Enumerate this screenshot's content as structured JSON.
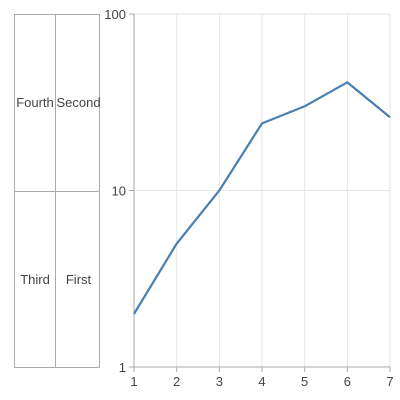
{
  "legend": {
    "cells": [
      {
        "label": "Fourth"
      },
      {
        "label": "Second"
      },
      {
        "label": "Third"
      },
      {
        "label": "First"
      }
    ]
  },
  "chart_data": {
    "type": "line",
    "x": [
      1,
      2,
      3,
      4,
      5,
      6,
      7
    ],
    "series": [
      {
        "values": [
          2,
          5,
          10,
          24,
          30,
          41,
          26
        ],
        "color": "#4a7fb0"
      }
    ],
    "xlim": [
      1,
      7
    ],
    "ylim": [
      1,
      100
    ],
    "yscale": "log",
    "xticks": [
      "1",
      "2",
      "3",
      "4",
      "5",
      "6",
      "7"
    ],
    "yticks": [
      {
        "value": 1,
        "label": "1"
      },
      {
        "value": 10,
        "label": "10"
      },
      {
        "value": 100,
        "label": "100"
      }
    ],
    "grid": true,
    "title": "",
    "xlabel": "",
    "ylabel": ""
  }
}
